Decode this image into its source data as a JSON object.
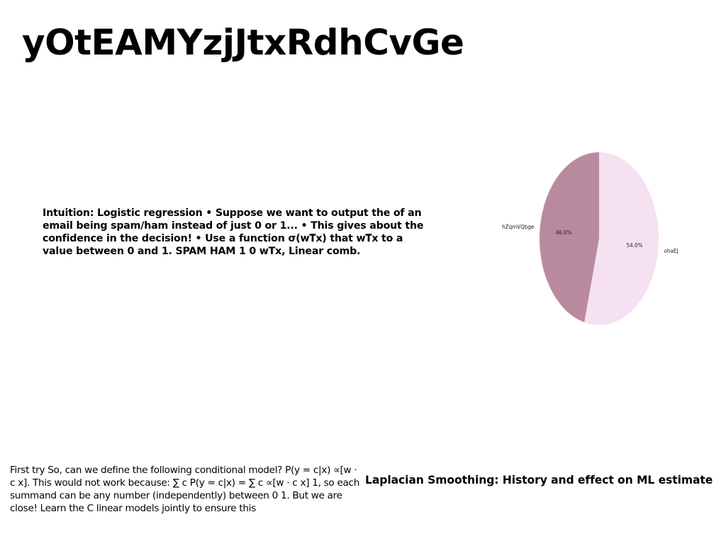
{
  "slide": {
    "title": "yOtEAMYzjJtxRdhCvGe",
    "intuition_text": "Intuition: Logistic regression • Suppose we want to output the of an email being spam/ham instead of just 0 or 1... • This gives about the confidence in the decision! • Use a function σ(w𝐓x) that w𝐓x to a value between 0 and 1. SPAM HAM 1 0 wTx, Linear comb.",
    "first_try_text": "First try So, can we define the following conditional model? P(y = c|x) ∝[w ⋅ c x]. This would not work because: ∑ c P(y = c|x) = ∑ c ∝[w ⋅ c x] 1, so each summand can be any number (independently) between 0 1. But we are close! Learn the C linear models jointly to ensure this",
    "laplacian_heading": "Laplacian Smoothing: History and effect on ML estimate"
  },
  "chart_data": {
    "type": "pie",
    "title": "",
    "slices": [
      {
        "label": "ohaEJ",
        "value": 54.0,
        "pct_label": "54.0%",
        "color": "#f5e1f2"
      },
      {
        "label": "hZqmVQbge",
        "value": 46.0,
        "pct_label": "46.0%",
        "color": "#b98a9e"
      }
    ],
    "start_angle_deg": 90,
    "direction": "clockwise",
    "legend": "none"
  }
}
